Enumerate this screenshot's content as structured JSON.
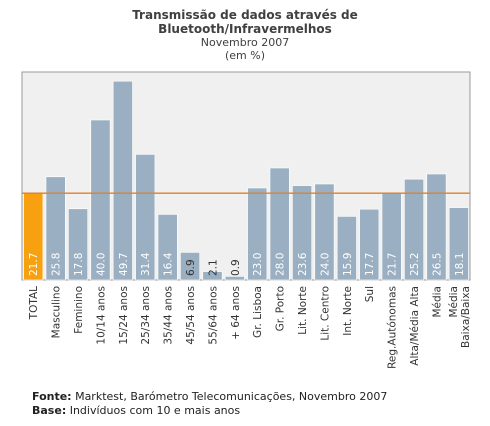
{
  "chart_data": {
    "type": "bar",
    "title": "Transmissão de dados através de Bluetooth/Infravermelhos",
    "title_line1": "Transmissão de dados através de",
    "title_line2": "Bluetooth/Infravermelhos",
    "subtitle_line1": "Novembro 2007",
    "subtitle_line2": "(em %)",
    "categories": [
      "TOTAL",
      "Masculino",
      "Feminino",
      "10/14 anos",
      "15/24 anos",
      "25/34 anos",
      "35/44 anos",
      "45/54 anos",
      "55/64 anos",
      "+ 64 anos",
      "Gr. Lisboa",
      "Gr. Porto",
      "Lit. Norte",
      "Lit. Centro",
      "Int. Norte",
      "Sul",
      "Reg.Autónomas",
      "Alta/Média Alta",
      "Média",
      "Média Baixa/Baixa"
    ],
    "category_lines": [
      [
        "TOTAL"
      ],
      [
        "Masculino"
      ],
      [
        "Feminino"
      ],
      [
        "10/14 anos"
      ],
      [
        "15/24 anos"
      ],
      [
        "25/34 anos"
      ],
      [
        "35/44 anos"
      ],
      [
        "45/54 anos"
      ],
      [
        "55/64 anos"
      ],
      [
        "+ 64 anos"
      ],
      [
        "Gr. Lisboa"
      ],
      [
        "Gr. Porto"
      ],
      [
        "Lit. Norte"
      ],
      [
        "Lit. Centro"
      ],
      [
        "Int. Norte"
      ],
      [
        "Sul"
      ],
      [
        "Reg.Autónomas"
      ],
      [
        "Alta/Média Alta"
      ],
      [
        "Média"
      ],
      [
        "Média",
        "Baixa/Baixa"
      ]
    ],
    "values": [
      21.7,
      25.8,
      17.8,
      40.0,
      49.7,
      31.4,
      16.4,
      6.9,
      2.1,
      0.9,
      23.0,
      28.0,
      23.6,
      24.0,
      15.9,
      17.7,
      21.7,
      25.2,
      26.5,
      18.1
    ],
    "value_labels": [
      "21.7",
      "25.8",
      "17.8",
      "40.0",
      "49.7",
      "31.4",
      "16.4",
      "6.9",
      "2.1",
      "0.9",
      "23.0",
      "28.0",
      "23.6",
      "24.0",
      "15.9",
      "17.7",
      "21.7",
      "25.2",
      "26.5",
      "18.1"
    ],
    "reference_line": 21.7,
    "highlight_index": 0,
    "ylim": [
      0,
      52
    ],
    "grid": false,
    "xlabel": "",
    "ylabel": ""
  },
  "colors": {
    "bar": "#9aafc1",
    "bar_highlight": "#f7a010",
    "reference_line": "#e0802a",
    "plot_background": "#f0f0f0",
    "plot_border": "#9a9a9a"
  },
  "footer": {
    "source_label": "Fonte:",
    "source_text": "Marktest, Barómetro Telecomunicações, Novembro 2007",
    "base_label": "Base:",
    "base_text": "Indivíduos com 10 e mais anos"
  }
}
